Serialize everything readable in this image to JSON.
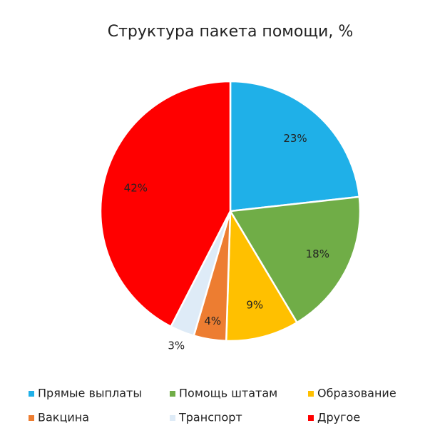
{
  "chart_data": {
    "type": "pie",
    "title": "Структура пакета помощи, %",
    "categories": [
      "Прямые выплаты",
      "Помощь штатам",
      "Образование",
      "Вакцина",
      "Транспорт",
      "Другое"
    ],
    "values": [
      23,
      18,
      9,
      4,
      3,
      42
    ],
    "value_labels": [
      "23%",
      "18%",
      "9%",
      "4%",
      "3%",
      "42%"
    ],
    "colors": [
      "#1fb0e8",
      "#70ad47",
      "#ffc000",
      "#ed7d31",
      "#deebf7",
      "#ff0000"
    ],
    "legend": "bottom"
  }
}
